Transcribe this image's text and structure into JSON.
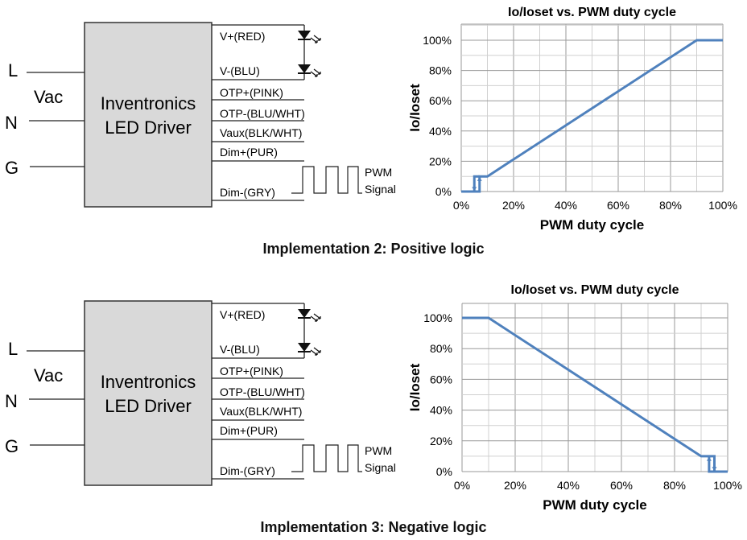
{
  "diagrams": [
    {
      "inputs": {
        "L": "L",
        "N": "N",
        "G": "G",
        "vac": "Vac"
      },
      "driver": {
        "line1": "Inventronics",
        "line2": "LED Driver"
      },
      "wires": [
        "V+(RED)",
        "V-(BLU)",
        "OTP+(PINK)",
        "OTP-(BLU/WHT)",
        "Vaux(BLK/WHT)",
        "Dim+(PUR)",
        "Dim-(GRY)"
      ],
      "pwm": {
        "line1": "PWM",
        "line2": "Signal"
      },
      "caption": "Implementation 2: Positive logic"
    },
    {
      "inputs": {
        "L": "L",
        "N": "N",
        "G": "G",
        "vac": "Vac"
      },
      "driver": {
        "line1": "Inventronics",
        "line2": "LED Driver"
      },
      "wires": [
        "V+(RED)",
        "V-(BLU)",
        "OTP+(PINK)",
        "OTP-(BLU/WHT)",
        "Vaux(BLK/WHT)",
        "Dim+(PUR)",
        "Dim-(GRY)"
      ],
      "pwm": {
        "line1": "PWM",
        "line2": "Signal"
      },
      "caption": "Implementation 3: Negative logic"
    }
  ],
  "chart_data": [
    {
      "type": "line",
      "title": "Io/Ioset vs. PWM duty cycle",
      "xlabel": "PWM duty cycle",
      "ylabel": "Io/Ioset",
      "xlim": [
        0,
        100
      ],
      "ylim": [
        0,
        110
      ],
      "xticks": [
        "0%",
        "20%",
        "40%",
        "60%",
        "80%",
        "100%"
      ],
      "yticks": [
        "0%",
        "20%",
        "40%",
        "60%",
        "80%",
        "100%"
      ],
      "grid": true,
      "color": "#4f81bd",
      "series": [
        {
          "x": [
            0,
            7,
            7,
            10,
            90,
            100
          ],
          "y": [
            0,
            0,
            10,
            10,
            100,
            100
          ]
        }
      ],
      "hysteresis": {
        "x": [
          7,
          5,
          5
        ],
        "y": [
          10,
          10,
          0
        ],
        "arrow_down_at": 5,
        "arrow_up_at": 7
      }
    },
    {
      "type": "line",
      "title": "Io/Ioset vs. PWM duty cycle",
      "xlabel": "PWM duty cycle",
      "ylabel": "Io/Ioset",
      "xlim": [
        0,
        100
      ],
      "ylim": [
        0,
        110
      ],
      "xticks": [
        "0%",
        "20%",
        "40%",
        "60%",
        "80%",
        "100%"
      ],
      "yticks": [
        "0%",
        "20%",
        "40%",
        "60%",
        "80%",
        "100%"
      ],
      "grid": true,
      "color": "#4f81bd",
      "series": [
        {
          "x": [
            0,
            10,
            90,
            95,
            95,
            100
          ],
          "y": [
            100,
            100,
            10,
            10,
            0,
            0
          ]
        }
      ],
      "hysteresis": {
        "x": [
          95,
          93,
          93
        ],
        "y": [
          0,
          0,
          10
        ],
        "arrow_down_at": 95,
        "arrow_up_at": 93
      }
    }
  ]
}
